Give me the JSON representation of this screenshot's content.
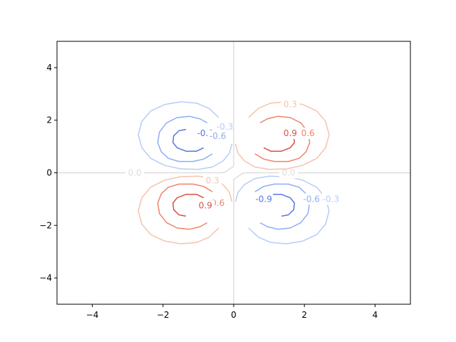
{
  "chart_data": {
    "type": "contour",
    "xlim": [
      -5,
      5
    ],
    "ylim": [
      -5,
      5
    ],
    "x_ticks": [
      -4,
      -2,
      0,
      2,
      4
    ],
    "y_ticks": [
      -4,
      -2,
      0,
      2,
      4
    ],
    "x_tick_labels": [
      "−4",
      "−2",
      "0",
      "2",
      "4"
    ],
    "y_tick_labels": [
      "−4",
      "−2",
      "0",
      "2",
      "4"
    ],
    "grid": false,
    "colormap": "coolwarm",
    "levels": [
      {
        "value": -0.9,
        "label": "-0.9",
        "color": "#5b76e0",
        "paths": [
          [
            [
              -1.35,
              1.65
            ],
            [
              -1.55,
              1.6
            ],
            [
              -1.7,
              1.4
            ],
            [
              -1.72,
              1.15
            ],
            [
              -1.6,
              0.95
            ],
            [
              -1.35,
              0.82
            ],
            [
              -1.05,
              0.82
            ],
            [
              -0.85,
              0.95
            ]
          ],
          [
            [
              1.35,
              -1.65
            ],
            [
              1.55,
              -1.6
            ],
            [
              1.7,
              -1.4
            ],
            [
              1.72,
              -1.15
            ],
            [
              1.6,
              -0.95
            ],
            [
              1.35,
              -0.82
            ],
            [
              1.05,
              -0.82
            ],
            [
              0.85,
              -0.95
            ]
          ]
        ],
        "labels_at": [
          [
            -0.8,
            1.5
          ],
          [
            0.85,
            -1.0
          ]
        ]
      },
      {
        "value": -0.6,
        "label": "-0.6",
        "color": "#8fadf5",
        "paths": [
          [
            [
              -0.75,
              1.9
            ],
            [
              -0.95,
              2.05
            ],
            [
              -1.25,
              2.15
            ],
            [
              -1.6,
              2.1
            ],
            [
              -1.9,
              1.9
            ],
            [
              -2.1,
              1.55
            ],
            [
              -2.15,
              1.15
            ],
            [
              -2.05,
              0.8
            ],
            [
              -1.85,
              0.55
            ],
            [
              -1.55,
              0.43
            ],
            [
              -1.15,
              0.43
            ],
            [
              -0.85,
              0.52
            ],
            [
              -0.6,
              0.72
            ]
          ],
          [
            [
              0.75,
              -1.9
            ],
            [
              0.95,
              -2.05
            ],
            [
              1.25,
              -2.15
            ],
            [
              1.6,
              -2.1
            ],
            [
              1.9,
              -1.9
            ],
            [
              2.1,
              -1.55
            ],
            [
              2.15,
              -1.15
            ],
            [
              2.05,
              -0.8
            ],
            [
              1.85,
              -0.55
            ],
            [
              1.55,
              -0.43
            ],
            [
              1.15,
              -0.43
            ],
            [
              0.85,
              -0.52
            ],
            [
              0.6,
              -0.72
            ]
          ]
        ],
        "labels_at": [
          [
            -0.45,
            1.4
          ],
          [
            2.2,
            -1.0
          ]
        ]
      },
      {
        "value": -0.3,
        "label": "-0.3",
        "color": "#b6cdf8",
        "paths": [
          [
            [
              -0.42,
              2.1
            ],
            [
              -0.7,
              2.45
            ],
            [
              -1.05,
              2.65
            ],
            [
              -1.5,
              2.7
            ],
            [
              -1.95,
              2.6
            ],
            [
              -2.35,
              2.35
            ],
            [
              -2.6,
              1.95
            ],
            [
              -2.7,
              1.45
            ],
            [
              -2.6,
              0.95
            ],
            [
              -2.35,
              0.55
            ],
            [
              -1.95,
              0.28
            ],
            [
              -1.5,
              0.15
            ],
            [
              -1.0,
              0.13
            ],
            [
              -0.6,
              0.22
            ],
            [
              -0.3,
              0.45
            ],
            [
              -0.12,
              0.75
            ],
            [
              -0.05,
              1.1
            ]
          ],
          [
            [
              0.42,
              -2.1
            ],
            [
              0.7,
              -2.45
            ],
            [
              1.05,
              -2.65
            ],
            [
              1.5,
              -2.7
            ],
            [
              1.95,
              -2.6
            ],
            [
              2.35,
              -2.35
            ],
            [
              2.6,
              -1.95
            ],
            [
              2.7,
              -1.45
            ],
            [
              2.6,
              -0.95
            ],
            [
              2.35,
              -0.55
            ],
            [
              1.95,
              -0.28
            ],
            [
              1.5,
              -0.15
            ],
            [
              1.0,
              -0.13
            ],
            [
              0.6,
              -0.22
            ],
            [
              0.3,
              -0.45
            ],
            [
              0.12,
              -0.75
            ],
            [
              0.05,
              -1.1
            ]
          ]
        ],
        "labels_at": [
          [
            -0.25,
            1.75
          ],
          [
            2.75,
            -1.0
          ]
        ]
      },
      {
        "value": 0.0,
        "label": "0.0",
        "color": "#dddddd",
        "paths": [
          [
            [
              -5,
              0
            ],
            [
              -3.4,
              0
            ],
            [
              -2.6,
              0
            ],
            [
              -0.35,
              0
            ],
            [
              -0.25,
              0.02
            ],
            [
              0,
              0.25
            ],
            [
              0,
              5
            ]
          ],
          [
            [
              5,
              0
            ],
            [
              3.4,
              0
            ],
            [
              2.6,
              0
            ],
            [
              0.35,
              0
            ],
            [
              0.25,
              -0.02
            ],
            [
              0,
              -0.25
            ],
            [
              0,
              -5
            ]
          ]
        ],
        "labels_at": [
          [
            -2.8,
            0
          ],
          [
            1.55,
            0
          ]
        ]
      },
      {
        "value": 0.3,
        "label": "0.3",
        "color": "#f5c4ac",
        "paths": [
          [
            [
              0.05,
              1.1
            ],
            [
              0.12,
              0.75
            ],
            [
              0.3,
              0.45
            ],
            [
              0.6,
              0.22
            ],
            [
              1.0,
              0.13
            ],
            [
              1.5,
              0.15
            ],
            [
              1.95,
              0.28
            ],
            [
              2.35,
              0.55
            ],
            [
              2.6,
              0.95
            ],
            [
              2.7,
              1.45
            ],
            [
              2.6,
              1.95
            ],
            [
              2.35,
              2.35
            ],
            [
              1.95,
              2.6
            ],
            [
              1.5,
              2.7
            ],
            [
              1.05,
              2.65
            ],
            [
              0.7,
              2.45
            ],
            [
              0.42,
              2.1
            ]
          ],
          [
            [
              -0.05,
              -1.1
            ],
            [
              -0.12,
              -0.75
            ],
            [
              -0.3,
              -0.45
            ],
            [
              -0.6,
              -0.22
            ],
            [
              -1.0,
              -0.13
            ],
            [
              -1.5,
              -0.15
            ],
            [
              -1.95,
              -0.28
            ],
            [
              -2.35,
              -0.55
            ],
            [
              -2.6,
              -0.95
            ],
            [
              -2.7,
              -1.45
            ],
            [
              -2.6,
              -1.95
            ],
            [
              -2.35,
              -2.35
            ],
            [
              -1.95,
              -2.6
            ],
            [
              -1.5,
              -2.7
            ],
            [
              -1.05,
              -2.65
            ],
            [
              -0.7,
              -2.45
            ],
            [
              -0.42,
              -2.1
            ]
          ]
        ],
        "labels_at": [
          [
            1.6,
            2.6
          ],
          [
            -0.6,
            -0.3
          ]
        ]
      },
      {
        "value": 0.6,
        "label": "0.6",
        "color": "#ee8468",
        "paths": [
          [
            [
              0.6,
              0.72
            ],
            [
              0.85,
              0.52
            ],
            [
              1.15,
              0.43
            ],
            [
              1.55,
              0.43
            ],
            [
              1.85,
              0.55
            ],
            [
              2.05,
              0.8
            ],
            [
              2.15,
              1.15
            ],
            [
              2.1,
              1.55
            ],
            [
              1.9,
              1.9
            ],
            [
              1.6,
              2.1
            ],
            [
              1.25,
              2.15
            ],
            [
              0.95,
              2.05
            ],
            [
              0.75,
              1.9
            ]
          ],
          [
            [
              -0.6,
              -0.72
            ],
            [
              -0.85,
              -0.52
            ],
            [
              -1.15,
              -0.43
            ],
            [
              -1.55,
              -0.43
            ],
            [
              -1.85,
              -0.55
            ],
            [
              -2.05,
              -0.8
            ],
            [
              -2.15,
              -1.15
            ],
            [
              -2.1,
              -1.55
            ],
            [
              -1.9,
              -1.9
            ],
            [
              -1.6,
              -2.1
            ],
            [
              -1.25,
              -2.15
            ],
            [
              -0.95,
              -2.05
            ],
            [
              -0.75,
              -1.9
            ]
          ]
        ],
        "labels_at": [
          [
            2.1,
            1.5
          ],
          [
            -0.45,
            -1.15
          ]
        ]
      },
      {
        "value": 0.9,
        "label": "0.9",
        "color": "#d65244",
        "paths": [
          [
            [
              0.85,
              0.95
            ],
            [
              1.05,
              0.82
            ],
            [
              1.35,
              0.82
            ],
            [
              1.6,
              0.95
            ],
            [
              1.72,
              1.15
            ],
            [
              1.7,
              1.4
            ],
            [
              1.55,
              1.6
            ],
            [
              1.35,
              1.65
            ]
          ],
          [
            [
              -0.85,
              -0.95
            ],
            [
              -1.05,
              -0.82
            ],
            [
              -1.35,
              -0.82
            ],
            [
              -1.6,
              -0.95
            ],
            [
              -1.72,
              -1.15
            ],
            [
              -1.7,
              -1.4
            ],
            [
              -1.55,
              -1.6
            ],
            [
              -1.35,
              -1.65
            ]
          ]
        ],
        "labels_at": [
          [
            1.6,
            1.5
          ],
          [
            -0.8,
            -1.25
          ]
        ]
      }
    ]
  }
}
